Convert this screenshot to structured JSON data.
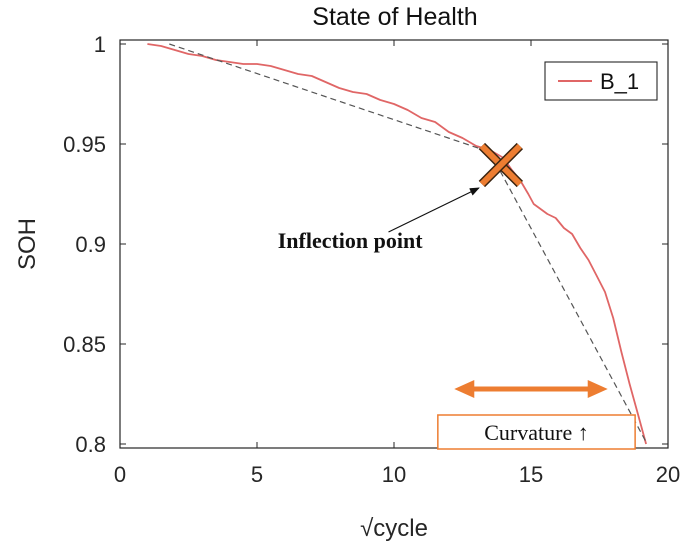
{
  "chart_data": {
    "type": "line",
    "title": "State of Health",
    "xlabel": "√cycle",
    "ylabel": "SOH",
    "xlim": [
      0,
      20
    ],
    "ylim": [
      0.798,
      1.002
    ],
    "xticks": [
      0,
      5,
      10,
      15,
      20
    ],
    "xtick_labels": [
      "0",
      "5",
      "10",
      "15",
      "20"
    ],
    "yticks": [
      0.8,
      0.85,
      0.9,
      0.95,
      1.0
    ],
    "ytick_labels": [
      "0.8",
      "0.85",
      "0.9",
      "0.95",
      "1"
    ],
    "grid": false,
    "legend": {
      "position": "top-right",
      "entries": [
        "B_1"
      ]
    },
    "series": [
      {
        "name": "B_1",
        "color": "#e06666",
        "x": [
          1.0,
          1.5,
          2.0,
          2.5,
          3.0,
          3.5,
          4.0,
          4.5,
          5.0,
          5.5,
          6.0,
          6.5,
          7.0,
          7.5,
          8.0,
          8.5,
          9.0,
          9.5,
          10.0,
          10.5,
          11.0,
          11.5,
          12.0,
          12.5,
          13.0,
          13.5,
          14.0,
          14.3,
          14.6,
          14.9,
          15.1,
          15.3,
          15.6,
          15.9,
          16.2,
          16.5,
          16.8,
          17.1,
          17.4,
          17.7,
          18.0,
          18.3,
          18.6,
          18.9,
          19.2
        ],
        "y": [
          1.0,
          0.999,
          0.997,
          0.995,
          0.994,
          0.992,
          0.991,
          0.99,
          0.99,
          0.989,
          0.987,
          0.985,
          0.984,
          0.981,
          0.978,
          0.976,
          0.975,
          0.972,
          0.97,
          0.967,
          0.963,
          0.961,
          0.956,
          0.953,
          0.949,
          0.947,
          0.943,
          0.937,
          0.932,
          0.925,
          0.92,
          0.918,
          0.915,
          0.913,
          0.908,
          0.905,
          0.898,
          0.892,
          0.884,
          0.876,
          0.863,
          0.846,
          0.83,
          0.815,
          0.8
        ]
      },
      {
        "name": "",
        "style": "dashed",
        "color": "#555555",
        "x": [
          1.8,
          13.5,
          19.2
        ],
        "y": [
          1.0,
          0.946,
          0.801
        ]
      }
    ],
    "annotations": [
      {
        "type": "marker",
        "shape": "x",
        "x": 13.9,
        "y": 0.9395,
        "color": "#ed7d31"
      },
      {
        "type": "arrow",
        "text": "Inflection point",
        "text_x": 8.4,
        "text_y": 0.898,
        "to_x": 13.1,
        "to_y": 0.928
      },
      {
        "type": "double-arrow",
        "color": "#ed7d31",
        "x_from": 12.2,
        "x_to": 17.8,
        "y": 0.8275
      },
      {
        "type": "box-label",
        "text": "Curvature ↑",
        "x_from": 11.6,
        "x_to": 18.8,
        "y": 0.806,
        "color": "#ed7d31"
      }
    ]
  }
}
